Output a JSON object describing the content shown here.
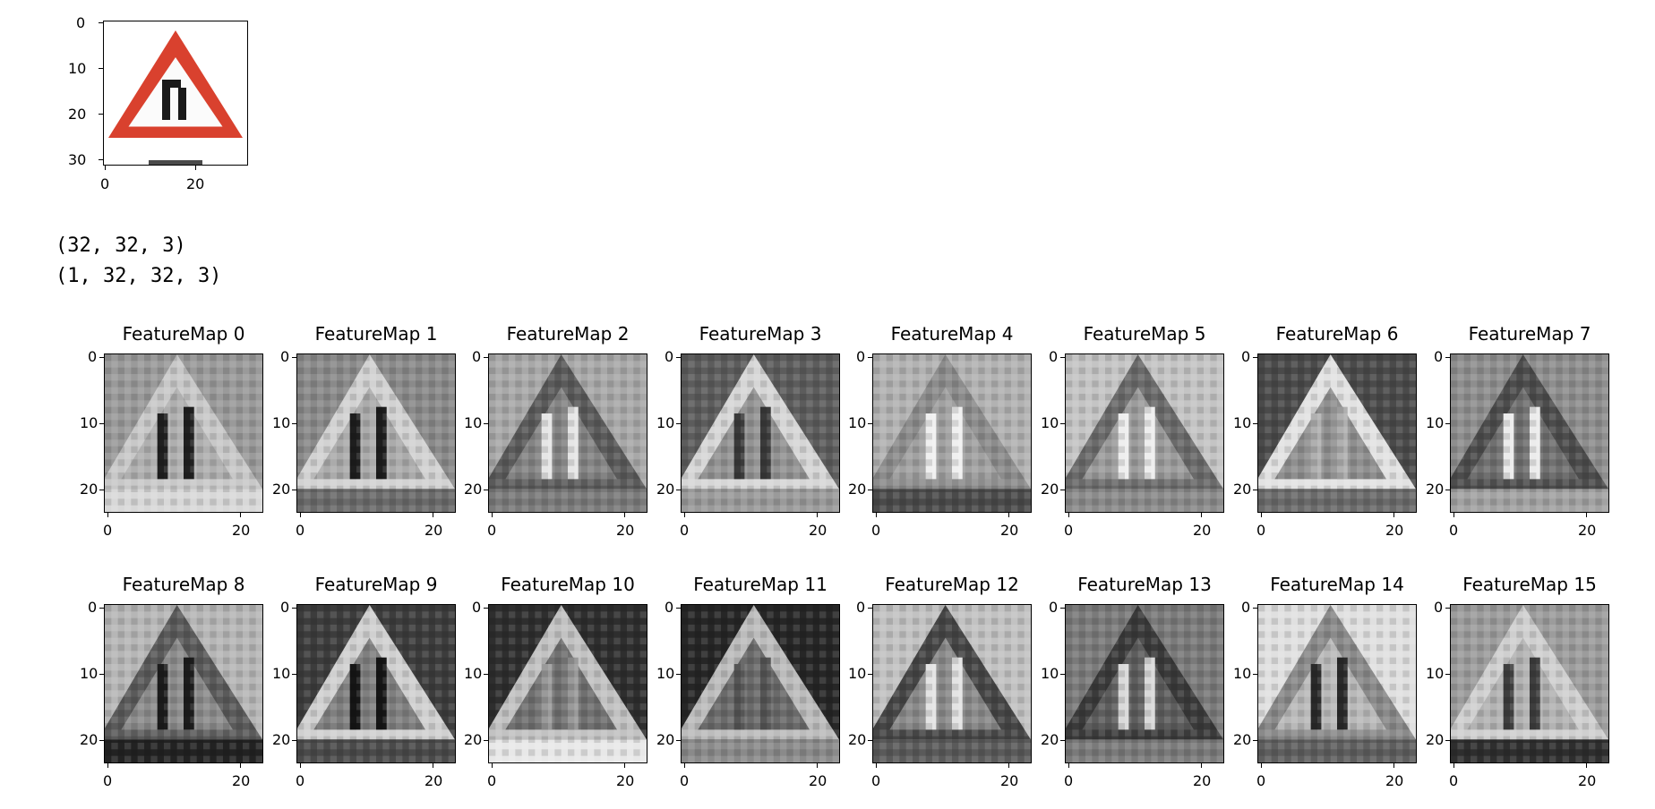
{
  "input_plot": {
    "y_ticks": [
      "0",
      "10",
      "20",
      "30"
    ],
    "x_ticks": [
      "0",
      "20"
    ],
    "image_icon": "road-narrows-right-warning-sign"
  },
  "console_output": [
    "(32, 32, 3)",
    "(1, 32, 32, 3)"
  ],
  "feature_maps": [
    {
      "title": "FeatureMap 0",
      "x_ticks": [
        "0",
        "20"
      ],
      "y_ticks": [
        "0",
        "10",
        "20"
      ],
      "bg": "#9a9a9a",
      "tri": "#c8c8c8",
      "bars": "#202020",
      "base": "#d8d8d8"
    },
    {
      "title": "FeatureMap 1",
      "x_ticks": [
        "0",
        "20"
      ],
      "y_ticks": [
        "0",
        "10",
        "20"
      ],
      "bg": "#8a8a8a",
      "tri": "#d2d2d2",
      "bars": "#1e1e1e",
      "base": "#6a6a6a"
    },
    {
      "title": "FeatureMap 2",
      "x_ticks": [
        "0",
        "20"
      ],
      "y_ticks": [
        "0",
        "10",
        "20"
      ],
      "bg": "#a8a8a8",
      "tri": "#5a5a5a",
      "bars": "#e6e6e6",
      "base": "#7a7a7a"
    },
    {
      "title": "FeatureMap 3",
      "x_ticks": [
        "0",
        "20"
      ],
      "y_ticks": [
        "0",
        "10",
        "20"
      ],
      "bg": "#5c5c5c",
      "tri": "#d6d6d6",
      "bars": "#3a3a3a",
      "base": "#9a9a9a"
    },
    {
      "title": "FeatureMap 4",
      "x_ticks": [
        "0",
        "20"
      ],
      "y_ticks": [
        "0",
        "10",
        "20"
      ],
      "bg": "#b2b2b2",
      "tri": "#8c8c8c",
      "bars": "#f0f0f0",
      "base": "#4a4a4a"
    },
    {
      "title": "FeatureMap 5",
      "x_ticks": [
        "0",
        "20"
      ],
      "y_ticks": [
        "0",
        "10",
        "20"
      ],
      "bg": "#c4c4c4",
      "tri": "#6a6a6a",
      "bars": "#eeeeee",
      "base": "#8a8a8a"
    },
    {
      "title": "FeatureMap 6",
      "x_ticks": [
        "0",
        "20"
      ],
      "y_ticks": [
        "0",
        "10",
        "20"
      ],
      "bg": "#4a4a4a",
      "tri": "#e2e2e2",
      "bars": "#b0b0b0",
      "base": "#6a6a6a"
    },
    {
      "title": "FeatureMap 7",
      "x_ticks": [
        "0",
        "20"
      ],
      "y_ticks": [
        "0",
        "10",
        "20"
      ],
      "bg": "#8e8e8e",
      "tri": "#4c4c4c",
      "bars": "#ececec",
      "base": "#a2a2a2"
    },
    {
      "title": "FeatureMap 8",
      "x_ticks": [
        "0",
        "20"
      ],
      "y_ticks": [
        "0",
        "10",
        "20"
      ],
      "bg": "#b6b6b6",
      "tri": "#5a5a5a",
      "bars": "#1c1c1c",
      "base": "#222222"
    },
    {
      "title": "FeatureMap 9",
      "x_ticks": [
        "0",
        "20"
      ],
      "y_ticks": [
        "0",
        "10",
        "20"
      ],
      "bg": "#3c3c3c",
      "tri": "#d0d0d0",
      "bars": "#161616",
      "base": "#4a4a4a"
    },
    {
      "title": "FeatureMap 10",
      "x_ticks": [
        "0",
        "20"
      ],
      "y_ticks": [
        "0",
        "10",
        "20"
      ],
      "bg": "#2e2e2e",
      "tri": "#c2c2c2",
      "bars": "#9a9a9a",
      "base": "#e8e8e8"
    },
    {
      "title": "FeatureMap 11",
      "x_ticks": [
        "0",
        "20"
      ],
      "y_ticks": [
        "0",
        "10",
        "20"
      ],
      "bg": "#262626",
      "tri": "#bcbcbc",
      "bars": "#555555",
      "base": "#8a8a8a"
    },
    {
      "title": "FeatureMap 12",
      "x_ticks": [
        "0",
        "20"
      ],
      "y_ticks": [
        "0",
        "10",
        "20"
      ],
      "bg": "#c2c2c2",
      "tri": "#454545",
      "bars": "#e4e4e4",
      "base": "#5a5a5a"
    },
    {
      "title": "FeatureMap 13",
      "x_ticks": [
        "0",
        "20"
      ],
      "y_ticks": [
        "0",
        "10",
        "20"
      ],
      "bg": "#7a7a7a",
      "tri": "#3a3a3a",
      "bars": "#dadada",
      "base": "#7a7a7a"
    },
    {
      "title": "FeatureMap 14",
      "x_ticks": [
        "0",
        "20"
      ],
      "y_ticks": [
        "0",
        "10",
        "20"
      ],
      "bg": "#e0e0e0",
      "tri": "#8a8a8a",
      "bars": "#2a2a2a",
      "base": "#5e5e5e"
    },
    {
      "title": "FeatureMap 15",
      "x_ticks": [
        "0",
        "20"
      ],
      "y_ticks": [
        "0",
        "10",
        "20"
      ],
      "bg": "#9c9c9c",
      "tri": "#cfcfcf",
      "bars": "#3e3e3e",
      "base": "#2e2e2e"
    }
  ]
}
